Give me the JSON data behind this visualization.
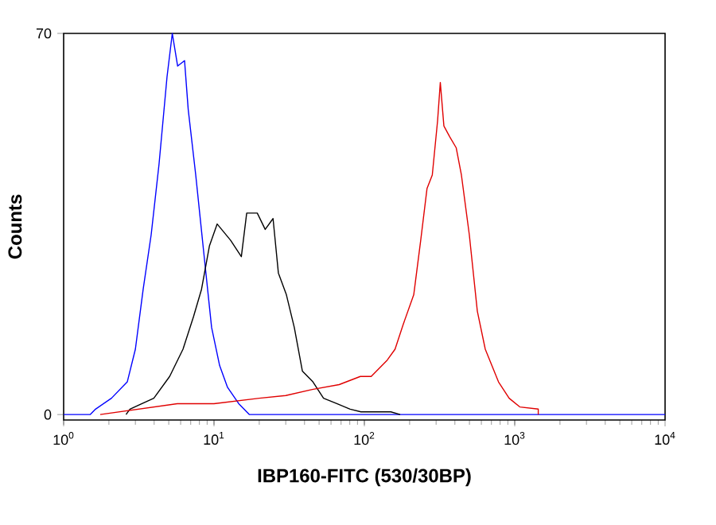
{
  "chart_data": {
    "type": "line",
    "xlabel": "IBP160-FITC (530/30BP)",
    "ylabel": "Counts",
    "log": "x",
    "grid": false,
    "xlim": [
      1,
      10000
    ],
    "ylim": [
      -1,
      70
    ],
    "xticks": [
      {
        "value": 1,
        "label": "10$^{0}$"
      },
      {
        "value": 10,
        "label": "10$^{1}$"
      },
      {
        "value": 100,
        "label": "10$^{2}$"
      },
      {
        "value": 1000,
        "label": "10$^{3}$"
      },
      {
        "value": 10000,
        "label": "10$^{4}$"
      }
    ],
    "yticks": [
      0,
      70
    ],
    "series": [
      {
        "color": "#0000ff",
        "x": [
          1,
          1.5,
          1.63,
          2.08,
          2.65,
          3.0,
          3.38,
          3.82,
          4.31,
          4.87,
          5.28,
          5.73,
          6.37,
          6.74,
          7.56,
          8.53,
          9.64,
          10.9,
          12.3,
          14.6,
          17.2,
          10000
        ],
        "values": [
          0,
          0,
          1,
          3,
          6,
          12,
          23,
          33,
          46,
          62,
          70,
          64,
          65,
          56,
          44,
          30,
          16,
          9,
          5,
          2,
          0,
          0
        ]
      },
      {
        "color": "#000000",
        "x": [
          2.6,
          2.76,
          3.98,
          5.07,
          6.22,
          7.31,
          8.26,
          9.33,
          10.5,
          12.9,
          15.2,
          16.5,
          19.4,
          21.9,
          24.7,
          26.8,
          30.3,
          34.2,
          38.7,
          45.5,
          53.5,
          65.6,
          80.4,
          95,
          120,
          150,
          173
        ],
        "values": [
          0,
          1,
          3,
          7,
          12,
          18,
          23,
          31,
          35,
          32,
          29,
          37,
          37,
          34,
          36,
          26,
          22,
          16,
          8,
          6,
          3,
          2,
          1,
          0.5,
          0.5,
          0.5,
          0
        ]
      },
      {
        "color": "#e00000",
        "x": [
          1.75,
          5.7,
          10,
          20,
          30,
          45,
          68,
          94,
          111,
          142,
          160,
          181,
          213,
          237,
          261,
          283,
          307,
          320,
          338,
          370,
          408,
          442,
          499,
          564,
          637,
          780,
          918,
          1081,
          1434,
          1434
        ],
        "values": [
          0,
          2,
          2,
          3,
          3.5,
          4.6,
          5.5,
          7,
          7,
          10,
          12,
          16.5,
          22,
          32,
          41.5,
          44,
          54,
          61,
          53,
          51,
          49,
          44,
          33,
          19,
          12,
          6,
          3,
          1.4,
          1,
          0
        ]
      }
    ]
  }
}
